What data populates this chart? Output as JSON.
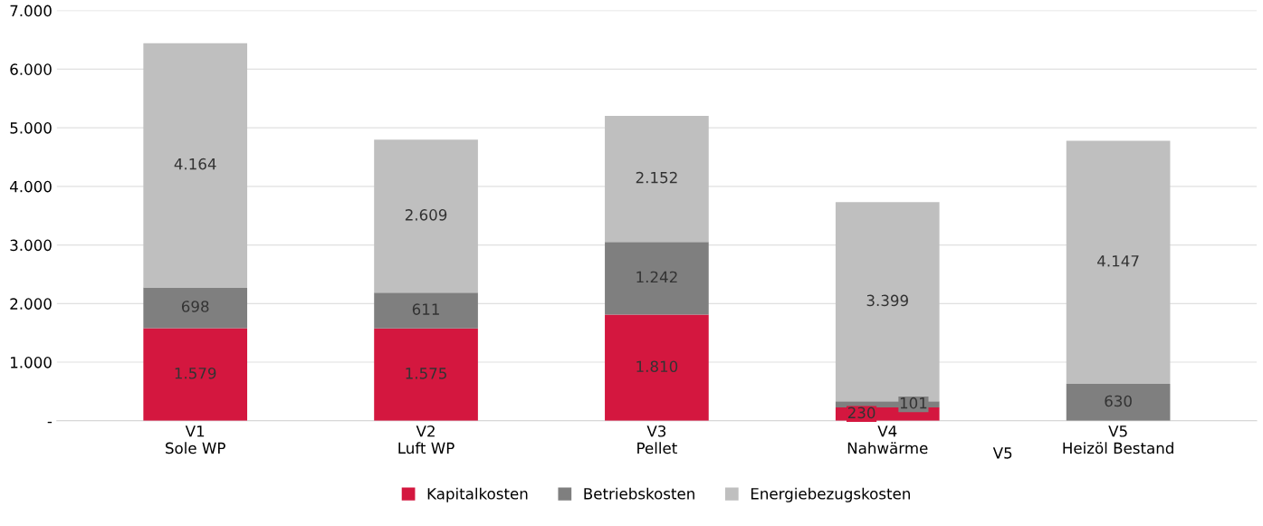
{
  "chart_data": {
    "type": "bar",
    "stacked": true,
    "categories": [
      "V1\nSole WP",
      "V2\nLuft WP",
      "V3\nPellet",
      "V4\nNahwärme",
      "V5\nHeizöl Bestand"
    ],
    "series": [
      {
        "name": "Kapitalkosten",
        "color": "#d4173f",
        "values": [
          1579,
          1575,
          1810,
          230,
          0
        ],
        "value_labels": [
          "1.579",
          "1.575",
          "1.810",
          "230",
          null
        ]
      },
      {
        "name": "Betriebskosten",
        "color": "#7f7f7f",
        "values": [
          698,
          611,
          1242,
          101,
          630
        ],
        "value_labels": [
          "698",
          "611",
          "1.242",
          "101",
          "630"
        ]
      },
      {
        "name": "Energiebezugskosten",
        "color": "#bfbfbf",
        "values": [
          4164,
          2609,
          2152,
          3399,
          4147
        ],
        "value_labels": [
          "4.164",
          "2.609",
          "2.152",
          "3.399",
          "4.147"
        ]
      }
    ],
    "ylim": [
      0,
      7000
    ],
    "yticks": [
      {
        "value": 0,
        "label": "-"
      },
      {
        "value": 1000,
        "label": "1.000"
      },
      {
        "value": 2000,
        "label": "2.000"
      },
      {
        "value": 3000,
        "label": "3.000"
      },
      {
        "value": 4000,
        "label": "4.000"
      },
      {
        "value": 5000,
        "label": "5.000"
      },
      {
        "value": 6000,
        "label": "6.000"
      },
      {
        "value": 7000,
        "label": "7.000"
      }
    ],
    "grid": "y",
    "legend": "bottom",
    "annotations": [
      "V5"
    ]
  }
}
